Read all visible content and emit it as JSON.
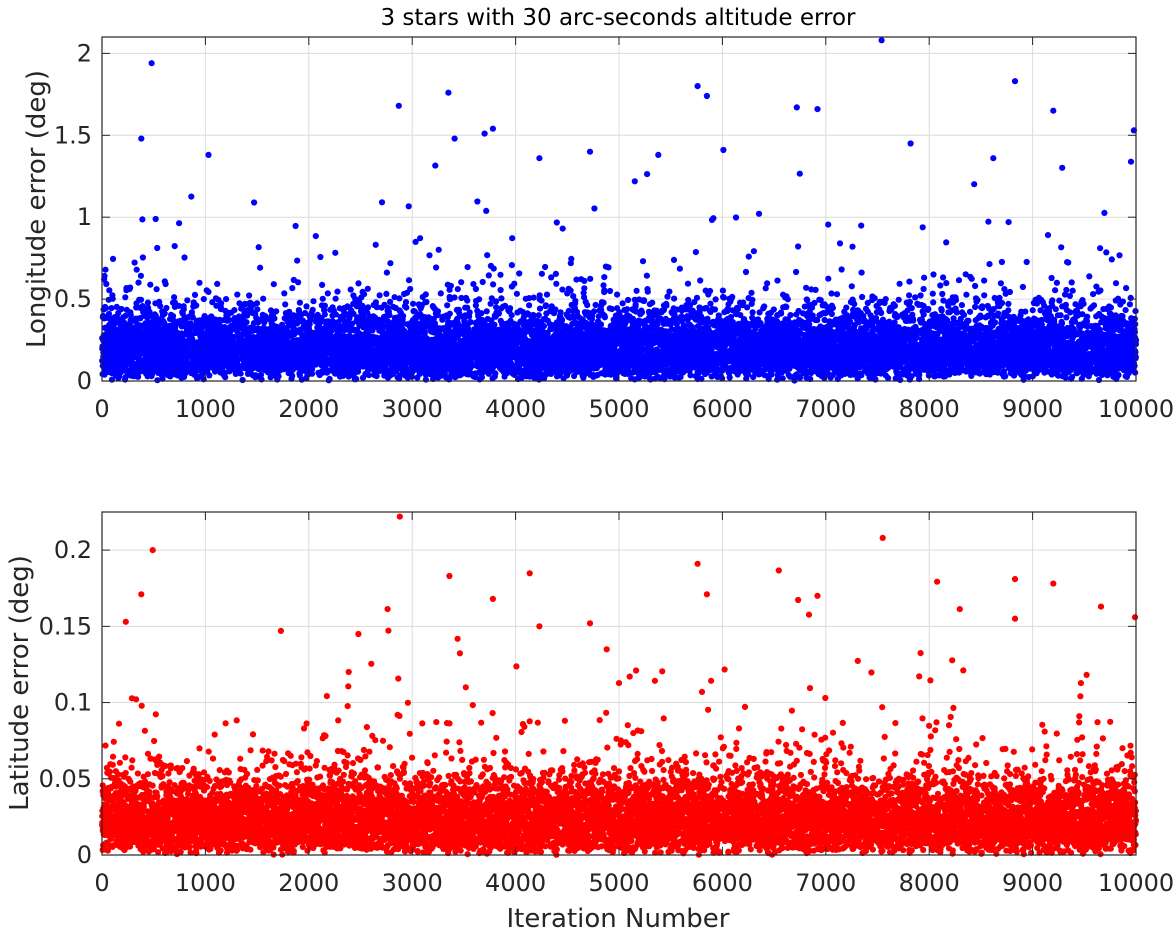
{
  "figure": {
    "title": "3 stars with 30 arc-seconds altitude error"
  },
  "chart_data": [
    {
      "type": "scatter",
      "id": "longitude",
      "title": "3 stars with 30 arc-seconds altitude error",
      "xlabel": "",
      "ylabel": "Longitude error (deg)",
      "xlim": [
        0,
        10000
      ],
      "ylim": [
        0,
        2.1
      ],
      "xticks": [
        0,
        1000,
        2000,
        3000,
        4000,
        5000,
        6000,
        7000,
        8000,
        9000,
        10000
      ],
      "xtick_labels": [
        "0",
        "1000",
        "2000",
        "3000",
        "4000",
        "5000",
        "6000",
        "7000",
        "8000",
        "9000",
        "10000"
      ],
      "yticks": [
        0,
        0.5,
        1,
        1.5,
        2
      ],
      "ytick_labels": [
        "0",
        "0.5",
        "1",
        "1.5",
        "2"
      ],
      "grid": true,
      "marker_color": "#0000ff",
      "n_points": 10000,
      "x_range": [
        1,
        10000
      ],
      "notable_points": [
        {
          "x": 480,
          "y": 1.94
        },
        {
          "x": 7540,
          "y": 2.08
        },
        {
          "x": 8830,
          "y": 1.83
        },
        {
          "x": 5760,
          "y": 1.8
        },
        {
          "x": 3350,
          "y": 1.76
        },
        {
          "x": 5850,
          "y": 1.74
        },
        {
          "x": 2870,
          "y": 1.68
        },
        {
          "x": 6720,
          "y": 1.67
        },
        {
          "x": 6920,
          "y": 1.66
        },
        {
          "x": 9200,
          "y": 1.65
        },
        {
          "x": 3780,
          "y": 1.54
        },
        {
          "x": 9980,
          "y": 1.53
        },
        {
          "x": 3700,
          "y": 1.51
        },
        {
          "x": 3410,
          "y": 1.48
        },
        {
          "x": 380,
          "y": 1.48
        },
        {
          "x": 7820,
          "y": 1.45
        },
        {
          "x": 6010,
          "y": 1.41
        },
        {
          "x": 4720,
          "y": 1.4
        },
        {
          "x": 5380,
          "y": 1.38
        },
        {
          "x": 1030,
          "y": 1.38
        },
        {
          "x": 8620,
          "y": 1.36
        },
        {
          "x": 4230,
          "y": 1.36
        }
      ]
    },
    {
      "type": "scatter",
      "id": "latitude",
      "title": "",
      "xlabel": "Iteration Number",
      "ylabel": "Latitude error (deg)",
      "xlim": [
        0,
        10000
      ],
      "ylim": [
        0,
        0.225
      ],
      "xticks": [
        0,
        1000,
        2000,
        3000,
        4000,
        5000,
        6000,
        7000,
        8000,
        9000,
        10000
      ],
      "xtick_labels": [
        "0",
        "1000",
        "2000",
        "3000",
        "4000",
        "5000",
        "6000",
        "7000",
        "8000",
        "9000",
        "10000"
      ],
      "yticks": [
        0,
        0.05,
        0.1,
        0.15,
        0.2
      ],
      "ytick_labels": [
        "0",
        "0.05",
        "0.1",
        "0.15",
        "0.2"
      ],
      "grid": true,
      "marker_color": "#ff0000",
      "n_points": 10000,
      "x_range": [
        1,
        10000
      ],
      "notable_points": [
        {
          "x": 2880,
          "y": 0.222
        },
        {
          "x": 7550,
          "y": 0.208
        },
        {
          "x": 490,
          "y": 0.2
        },
        {
          "x": 5760,
          "y": 0.191
        },
        {
          "x": 3360,
          "y": 0.183
        },
        {
          "x": 8830,
          "y": 0.181
        },
        {
          "x": 9200,
          "y": 0.178
        },
        {
          "x": 380,
          "y": 0.171
        },
        {
          "x": 5850,
          "y": 0.171
        },
        {
          "x": 6920,
          "y": 0.17
        },
        {
          "x": 3780,
          "y": 0.168
        },
        {
          "x": 9990,
          "y": 0.156
        },
        {
          "x": 8830,
          "y": 0.155
        },
        {
          "x": 4720,
          "y": 0.152
        },
        {
          "x": 230,
          "y": 0.153
        },
        {
          "x": 4230,
          "y": 0.15
        },
        {
          "x": 1730,
          "y": 0.147
        },
        {
          "x": 2480,
          "y": 0.145
        }
      ]
    }
  ]
}
